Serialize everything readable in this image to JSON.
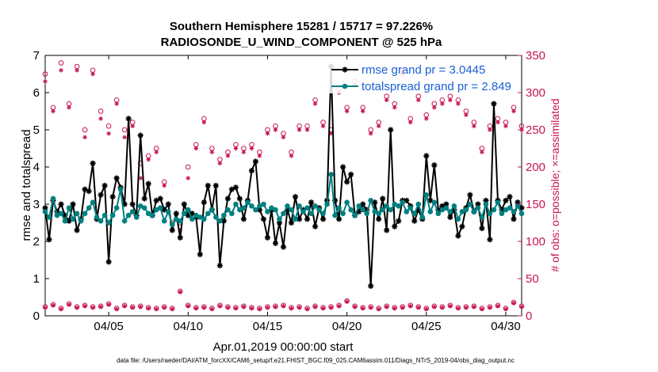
{
  "chart_data": {
    "type": "line",
    "title": "Southern Hemisphere 15281 / 15717 = 97.226%",
    "subtitle": "RADIOSONDE_U_WIND_COMPONENT @ 525 hPa",
    "xlabel": "Apr.01,2019 00:00:00 start",
    "ylabel": "rmse and totalspread",
    "ylabel_right": "# of obs: o=possible; ×=assimilated",
    "footnote": "data file: /Users/raeder/DAI/ATM_forcXX/CAM6_setup/f.e21.FHIST_BGC.f09_025.CAM6assim.011/Diags_NTrS_2019-04/obs_diag_output.nc",
    "xlim": [
      1.0,
      31.0
    ],
    "ylim": [
      0,
      7
    ],
    "ylim_right": [
      0,
      350
    ],
    "x_ticks": [
      5,
      10,
      15,
      20,
      25,
      30
    ],
    "x_tick_labels": [
      "04/05",
      "04/10",
      "04/15",
      "04/20",
      "04/25",
      "04/30"
    ],
    "y_ticks": [
      0,
      1,
      2,
      3,
      4,
      5,
      6,
      7
    ],
    "y_tick_labels": [
      "0",
      "1",
      "2",
      "3",
      "4",
      "5",
      "6",
      "7"
    ],
    "y2_ticks": [
      0,
      50,
      100,
      150,
      200,
      250,
      300,
      350
    ],
    "y2_tick_labels": [
      "0",
      "50",
      "100",
      "150",
      "200",
      "250",
      "300",
      "350"
    ],
    "grid": false,
    "legend_position": "top-right",
    "series": [
      {
        "name": "rmse grand pr = 3.0445",
        "color": "#000000",
        "marker": "asterisk",
        "x": [
          1.0,
          1.25,
          1.5,
          1.75,
          2.0,
          2.25,
          2.5,
          2.75,
          3.0,
          3.25,
          3.5,
          3.75,
          4.0,
          4.25,
          4.5,
          4.75,
          5.0,
          5.25,
          5.5,
          5.75,
          6.0,
          6.25,
          6.5,
          6.75,
          7.0,
          7.25,
          7.5,
          7.75,
          8.0,
          8.25,
          8.5,
          8.75,
          9.0,
          9.25,
          9.5,
          9.75,
          10.0,
          10.25,
          10.5,
          10.75,
          11.0,
          11.25,
          11.5,
          11.75,
          12.0,
          12.25,
          12.5,
          12.75,
          13.0,
          13.25,
          13.5,
          13.75,
          14.0,
          14.25,
          14.5,
          14.75,
          15.0,
          15.25,
          15.5,
          15.75,
          16.0,
          16.25,
          16.5,
          16.75,
          17.0,
          17.25,
          17.5,
          17.75,
          18.0,
          18.25,
          18.5,
          18.75,
          19.0,
          19.25,
          19.5,
          19.75,
          20.0,
          20.25,
          20.5,
          20.75,
          21.0,
          21.25,
          21.5,
          21.75,
          22.0,
          22.25,
          22.5,
          22.75,
          23.0,
          23.25,
          23.5,
          23.75,
          24.0,
          24.25,
          24.5,
          24.75,
          25.0,
          25.25,
          25.5,
          25.75,
          26.0,
          26.25,
          26.5,
          26.75,
          27.0,
          27.25,
          27.5,
          27.75,
          28.0,
          28.25,
          28.5,
          28.75,
          29.0,
          29.25,
          29.5,
          29.75,
          30.0,
          30.25,
          30.5,
          30.75,
          31.0
        ],
        "values": [
          2.9,
          2.05,
          3.1,
          2.8,
          3.0,
          2.7,
          2.55,
          3.0,
          2.3,
          2.6,
          3.4,
          3.35,
          4.1,
          2.6,
          3.25,
          3.5,
          1.45,
          3.2,
          3.7,
          3.45,
          3.0,
          5.3,
          3.0,
          2.7,
          4.85,
          3.15,
          3.55,
          2.7,
          3.1,
          3.15,
          2.85,
          3.0,
          2.3,
          2.75,
          2.1,
          3.0,
          2.7,
          2.75,
          2.65,
          1.65,
          3.05,
          3.5,
          2.85,
          3.5,
          1.35,
          2.55,
          3.15,
          3.4,
          3.45,
          3.15,
          2.6,
          3.1,
          3.9,
          4.15,
          2.85,
          2.6,
          2.1,
          2.85,
          1.95,
          2.5,
          1.85,
          2.85,
          2.5,
          3.2,
          2.6,
          2.85,
          2.6,
          3.05,
          2.4,
          2.9,
          2.6,
          3.1,
          6.7,
          3.1,
          2.6,
          4.0,
          3.6,
          3.8,
          2.7,
          2.8,
          3.0,
          2.85,
          0.8,
          3.05,
          2.6,
          3.15,
          2.3,
          5.0,
          2.4,
          2.55,
          3.1,
          3.1,
          2.95,
          2.55,
          2.85,
          2.6,
          4.3,
          3.1,
          4.05,
          2.85,
          2.95,
          3.0,
          2.65,
          2.85,
          2.15,
          2.4,
          2.9,
          3.25,
          2.8,
          3.0,
          2.35,
          3.1,
          2.05,
          5.7,
          3.1,
          2.85,
          3.1,
          3.2,
          2.6,
          3.05,
          2.9
        ],
        "axis": "left"
      },
      {
        "name": "totalspread grand pr = 2.849",
        "color": "#008080",
        "marker": "filled-circle",
        "x": [
          1.0,
          1.25,
          1.5,
          1.75,
          2.0,
          2.25,
          2.5,
          2.75,
          3.0,
          3.25,
          3.5,
          3.75,
          4.0,
          4.25,
          4.5,
          4.75,
          5.0,
          5.25,
          5.5,
          5.75,
          6.0,
          6.25,
          6.5,
          6.75,
          7.0,
          7.25,
          7.5,
          7.75,
          8.0,
          8.25,
          8.5,
          8.75,
          9.0,
          9.25,
          9.5,
          9.75,
          10.0,
          10.25,
          10.5,
          10.75,
          11.0,
          11.25,
          11.5,
          11.75,
          12.0,
          12.25,
          12.5,
          12.75,
          13.0,
          13.25,
          13.5,
          13.75,
          14.0,
          14.25,
          14.5,
          14.75,
          15.0,
          15.25,
          15.5,
          15.75,
          16.0,
          16.25,
          16.5,
          16.75,
          17.0,
          17.25,
          17.5,
          17.75,
          18.0,
          18.25,
          18.5,
          18.75,
          19.0,
          19.25,
          19.5,
          19.75,
          20.0,
          20.25,
          20.5,
          20.75,
          21.0,
          21.25,
          21.5,
          21.75,
          22.0,
          22.25,
          22.5,
          22.75,
          23.0,
          23.25,
          23.5,
          23.75,
          24.0,
          24.25,
          24.5,
          24.75,
          25.0,
          25.25,
          25.5,
          25.75,
          26.0,
          26.25,
          26.5,
          26.75,
          27.0,
          27.25,
          27.5,
          27.75,
          28.0,
          28.25,
          28.5,
          28.75,
          29.0,
          29.25,
          29.5,
          29.75,
          30.0,
          30.25,
          30.5,
          30.75,
          31.0
        ],
        "values": [
          2.8,
          2.65,
          3.15,
          2.7,
          2.75,
          2.55,
          2.9,
          2.6,
          2.75,
          2.55,
          2.75,
          2.9,
          3.05,
          2.65,
          2.55,
          2.7,
          2.5,
          2.7,
          2.9,
          3.4,
          2.55,
          2.7,
          2.8,
          2.65,
          2.95,
          2.9,
          2.75,
          2.7,
          2.85,
          2.9,
          2.55,
          2.8,
          2.45,
          2.6,
          2.55,
          2.75,
          2.85,
          2.6,
          2.7,
          2.65,
          2.6,
          2.75,
          2.85,
          2.65,
          2.55,
          2.7,
          2.85,
          2.75,
          3.0,
          2.85,
          2.9,
          3.05,
          2.95,
          2.85,
          2.95,
          3.0,
          2.8,
          2.9,
          2.85,
          2.6,
          2.75,
          2.95,
          2.85,
          2.6,
          2.95,
          2.8,
          2.9,
          2.75,
          2.95,
          2.85,
          2.75,
          3.0,
          3.8,
          2.7,
          2.9,
          2.75,
          3.05,
          2.85,
          2.7,
          2.95,
          2.85,
          2.75,
          3.1,
          2.8,
          2.75,
          2.85,
          2.95,
          2.85,
          3.0,
          2.95,
          3.05,
          2.8,
          2.9,
          2.75,
          3.0,
          2.65,
          3.25,
          2.8,
          3.05,
          2.75,
          2.85,
          2.9,
          2.8,
          2.95,
          2.6,
          2.8,
          2.85,
          3.0,
          2.8,
          2.9,
          2.65,
          3.0,
          2.75,
          2.85,
          3.05,
          2.75,
          2.85,
          2.9,
          2.8,
          2.95,
          2.75
        ],
        "axis": "left"
      },
      {
        "name": "possible",
        "color": "#c8144e",
        "marker": "open-circle",
        "axis": "right",
        "x": [
          1.0,
          1.5,
          2.0,
          2.5,
          3.0,
          3.5,
          4.0,
          4.5,
          5.0,
          5.5,
          6.0,
          6.5,
          7.0,
          7.5,
          8.0,
          8.5,
          9.0,
          9.5,
          10.0,
          10.5,
          11.0,
          11.5,
          12.0,
          12.5,
          13.0,
          13.5,
          14.0,
          14.5,
          15.0,
          15.5,
          16.0,
          16.5,
          17.0,
          17.5,
          18.0,
          18.5,
          19.0,
          19.5,
          20.0,
          20.5,
          21.0,
          21.5,
          22.0,
          22.5,
          23.0,
          23.5,
          24.0,
          24.5,
          25.0,
          25.5,
          26.0,
          26.5,
          27.0,
          27.5,
          28.0,
          28.5,
          29.0,
          29.5,
          30.0,
          30.5,
          31.0
        ],
        "values": [
          325,
          280,
          340,
          285,
          335,
          250,
          330,
          275,
          255,
          290,
          250,
          260,
          205,
          215,
          225,
          180,
          125,
          125,
          200,
          230,
          265,
          225,
          210,
          220,
          230,
          225,
          230,
          220,
          250,
          255,
          245,
          220,
          255,
          255,
          290,
          260,
          250,
          305,
          280,
          315,
          280,
          250,
          260,
          295,
          285,
          330,
          265,
          295,
          270,
          285,
          290,
          295,
          290,
          275,
          260,
          225,
          255,
          265,
          260,
          280,
          255
        ],
        "values_low": [
          12,
          15,
          10,
          16,
          12,
          14,
          12,
          13,
          16,
          10,
          14,
          12,
          13,
          11,
          10,
          12,
          10,
          33,
          14,
          11,
          12,
          10,
          14,
          12,
          11,
          13,
          11,
          10,
          12,
          13,
          14,
          11,
          12,
          10,
          13,
          11,
          12,
          14,
          20,
          13,
          11,
          12,
          10,
          13,
          11,
          12,
          14,
          12,
          10,
          13,
          12,
          14,
          11,
          12,
          13,
          10,
          12,
          14,
          10,
          18,
          13
        ]
      },
      {
        "name": "assimilated",
        "color": "#c8144e",
        "marker": "asterisk",
        "axis": "right",
        "x": [
          1.0,
          1.5,
          2.0,
          2.5,
          3.0,
          3.5,
          4.0,
          4.5,
          5.0,
          5.5,
          6.0,
          6.5,
          7.0,
          7.5,
          8.0,
          8.5,
          9.0,
          9.5,
          10.0,
          10.5,
          11.0,
          11.5,
          12.0,
          12.5,
          13.0,
          13.5,
          14.0,
          14.5,
          15.0,
          15.5,
          16.0,
          16.5,
          17.0,
          17.5,
          18.0,
          18.5,
          19.0,
          19.5,
          20.0,
          20.5,
          21.0,
          21.5,
          22.0,
          22.5,
          23.0,
          23.5,
          24.0,
          24.5,
          25.0,
          25.5,
          26.0,
          26.5,
          27.0,
          27.5,
          28.0,
          28.5,
          29.0,
          29.5,
          30.0,
          30.5,
          31.0
        ],
        "values": [
          315,
          275,
          330,
          280,
          330,
          240,
          325,
          265,
          245,
          285,
          240,
          255,
          185,
          210,
          220,
          175,
          115,
          115,
          185,
          225,
          260,
          220,
          205,
          215,
          225,
          220,
          225,
          215,
          245,
          250,
          240,
          215,
          250,
          250,
          285,
          255,
          245,
          300,
          275,
          310,
          275,
          245,
          255,
          290,
          280,
          325,
          260,
          290,
          265,
          280,
          285,
          290,
          285,
          270,
          255,
          220,
          250,
          260,
          255,
          275,
          250
        ],
        "values_low": [
          11,
          14,
          9,
          15,
          11,
          13,
          11,
          12,
          15,
          9,
          13,
          11,
          12,
          10,
          9,
          11,
          9,
          32,
          13,
          10,
          11,
          9,
          13,
          11,
          10,
          12,
          10,
          9,
          11,
          12,
          13,
          10,
          11,
          9,
          12,
          10,
          11,
          13,
          19,
          12,
          10,
          11,
          9,
          12,
          10,
          11,
          13,
          11,
          9,
          12,
          11,
          13,
          10,
          11,
          12,
          9,
          11,
          13,
          9,
          17,
          12
        ]
      }
    ]
  }
}
